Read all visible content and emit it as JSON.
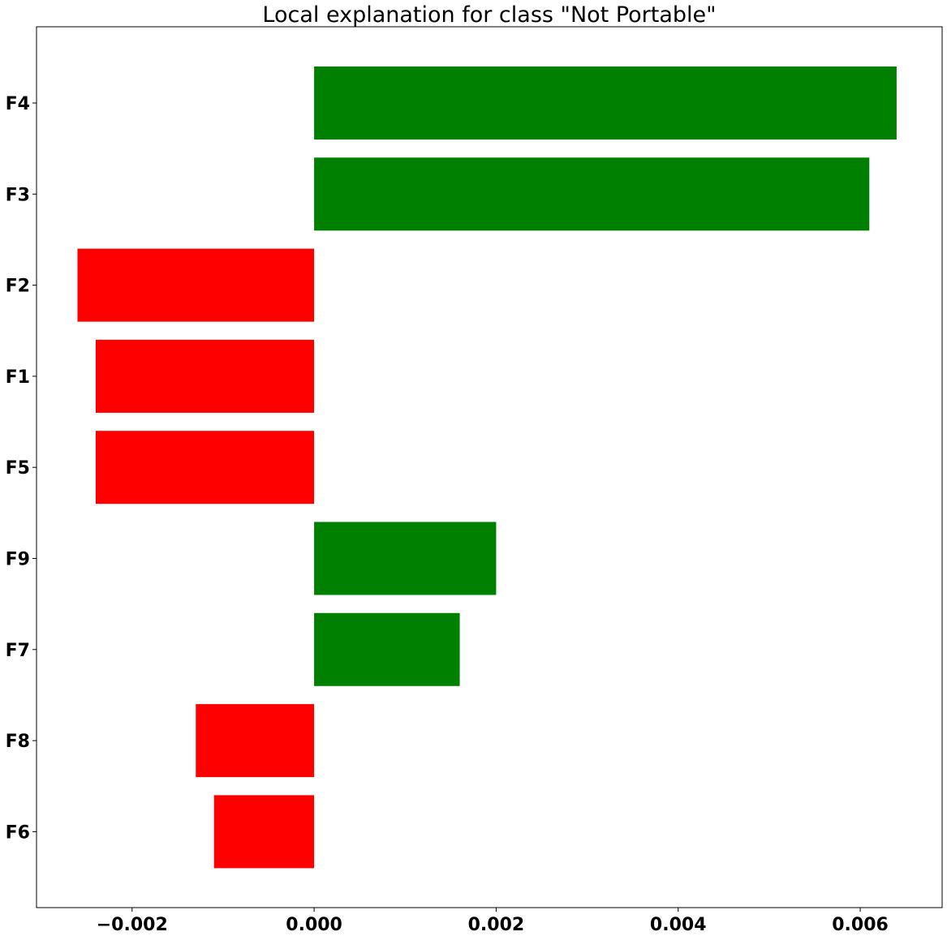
{
  "chart_data": {
    "type": "bar",
    "orientation": "horizontal",
    "title": "Local explanation for class \"Not Portable\"",
    "xlabel": "",
    "ylabel": "",
    "categories": [
      "F4",
      "F3",
      "F2",
      "F1",
      "F5",
      "F9",
      "F7",
      "F8",
      "F6"
    ],
    "values": [
      0.0064,
      0.0061,
      -0.0026,
      -0.0024,
      -0.0024,
      0.002,
      0.0016,
      -0.0013,
      -0.0011
    ],
    "xlim": [
      -0.00305,
      0.0069
    ],
    "xticks": [
      -0.002,
      0.0,
      0.002,
      0.004,
      0.006
    ],
    "xtick_labels": [
      "−0.002",
      "0.000",
      "0.002",
      "0.004",
      "0.006"
    ],
    "grid": false,
    "colors": {
      "positive": "#008000",
      "negative": "#ff0000"
    }
  }
}
